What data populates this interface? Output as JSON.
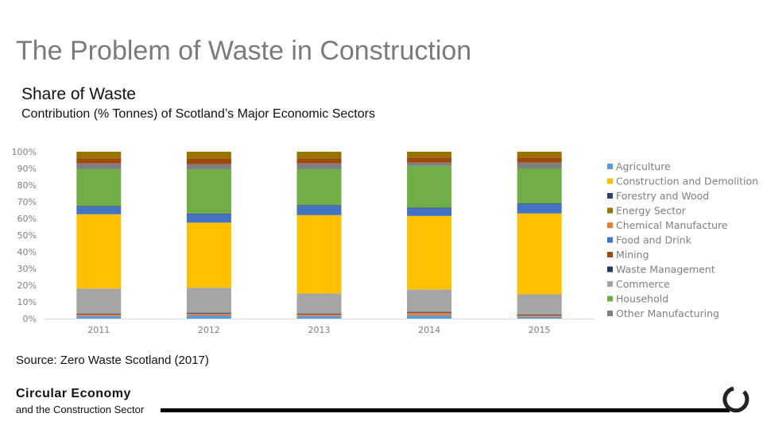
{
  "slide": {
    "title": "The Problem of Waste in Construction",
    "section_title": "Share of Waste",
    "subtitle": "Contribution (% Tonnes) of Scotland’s Major Economic Sectors",
    "source": "Source: Zero Waste Scotland (2017)",
    "footer_title": "Circular Economy",
    "footer_sub": "and the Construction Sector",
    "logo_icon": "circle-arc-icon"
  },
  "chart_data": {
    "type": "bar",
    "stacked": true,
    "categories": [
      "2011",
      "2012",
      "2013",
      "2014",
      "2015"
    ],
    "ylim": [
      0,
      100
    ],
    "yticks": [
      "0%",
      "10%",
      "20%",
      "30%",
      "40%",
      "50%",
      "60%",
      "70%",
      "80%",
      "90%",
      "100%"
    ],
    "grid": false,
    "legend_position": "right",
    "series": [
      {
        "name": "Agriculture",
        "color": "#5b9bd5",
        "values": [
          1.5,
          2,
          1.5,
          2,
          1
        ]
      },
      {
        "name": "Construction and Demolition",
        "color": "#ffc000",
        "values": [
          44.5,
          39,
          47,
          44,
          48.5
        ]
      },
      {
        "name": "Forestry and Wood",
        "color": "#264478",
        "values": [
          0.5,
          0.5,
          0.5,
          0.5,
          0.5
        ]
      },
      {
        "name": "Energy Sector",
        "color": "#997300",
        "values": [
          4,
          4,
          4,
          3.5,
          3.5
        ]
      },
      {
        "name": "Chemical Manufacture",
        "color": "#ed7d31",
        "values": [
          1,
          1,
          1,
          1.5,
          1
        ]
      },
      {
        "name": "Food and Drink",
        "color": "#4472c4",
        "values": [
          4.5,
          5,
          5.5,
          4.5,
          5.5
        ]
      },
      {
        "name": "Mining",
        "color": "#9e480e",
        "values": [
          3,
          3.5,
          3,
          3,
          3
        ]
      },
      {
        "name": "Waste Management",
        "color": "#203864",
        "values": [
          0.5,
          0.5,
          0.5,
          0.5,
          0.5
        ]
      },
      {
        "name": "Commerce",
        "color": "#a5a5a5",
        "values": [
          15,
          15,
          12,
          13.5,
          12
        ]
      },
      {
        "name": "Household",
        "color": "#70ad47",
        "values": [
          22,
          26.5,
          21.5,
          25,
          21
        ]
      },
      {
        "name": "Other Manufacturing",
        "color": "#7f7f7f",
        "values": [
          3.5,
          3,
          3.5,
          2,
          3.5
        ]
      }
    ],
    "stack_order": [
      "Agriculture",
      "Chemical Manufacture",
      "Waste Management",
      "Commerce",
      "Construction and Demolition",
      "Food and Drink",
      "Forestry and Wood",
      "Household",
      "Other Manufacturing",
      "Mining",
      "Energy Sector"
    ]
  }
}
